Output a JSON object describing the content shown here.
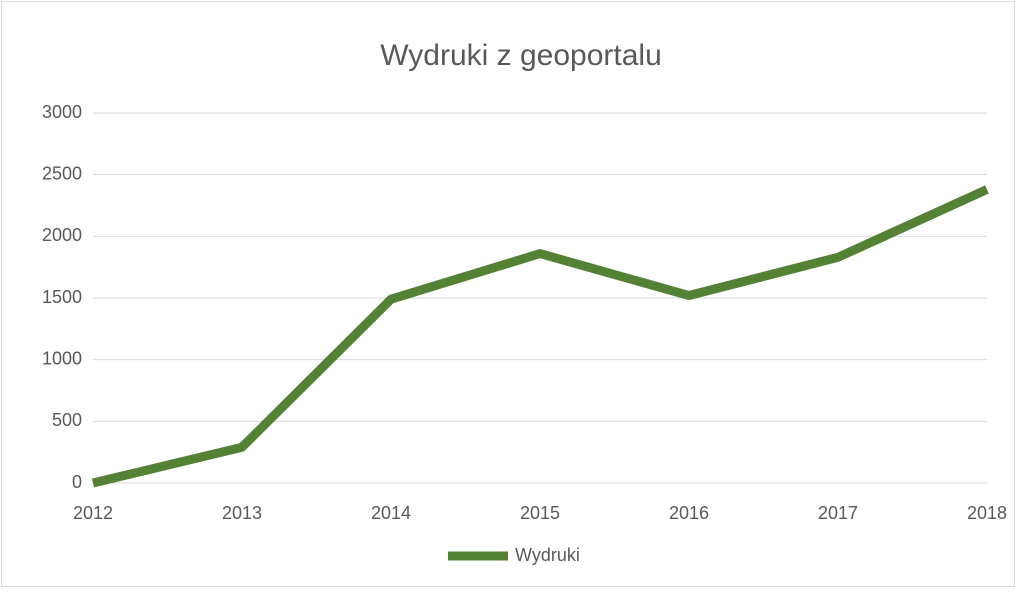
{
  "chart_data": {
    "type": "line",
    "title": "Wydruki z geoportalu",
    "categories": [
      "2012",
      "2013",
      "2014",
      "2015",
      "2016",
      "2017",
      "2018"
    ],
    "series": [
      {
        "name": "Wydruki",
        "color": "#548235",
        "values": [
          0,
          290,
          1490,
          1860,
          1520,
          1830,
          2380
        ]
      }
    ],
    "ylim": [
      0,
      3000
    ],
    "yticks": [
      0,
      500,
      1000,
      1500,
      2000,
      2500,
      3000
    ],
    "grid": true,
    "legend": "bottom"
  }
}
